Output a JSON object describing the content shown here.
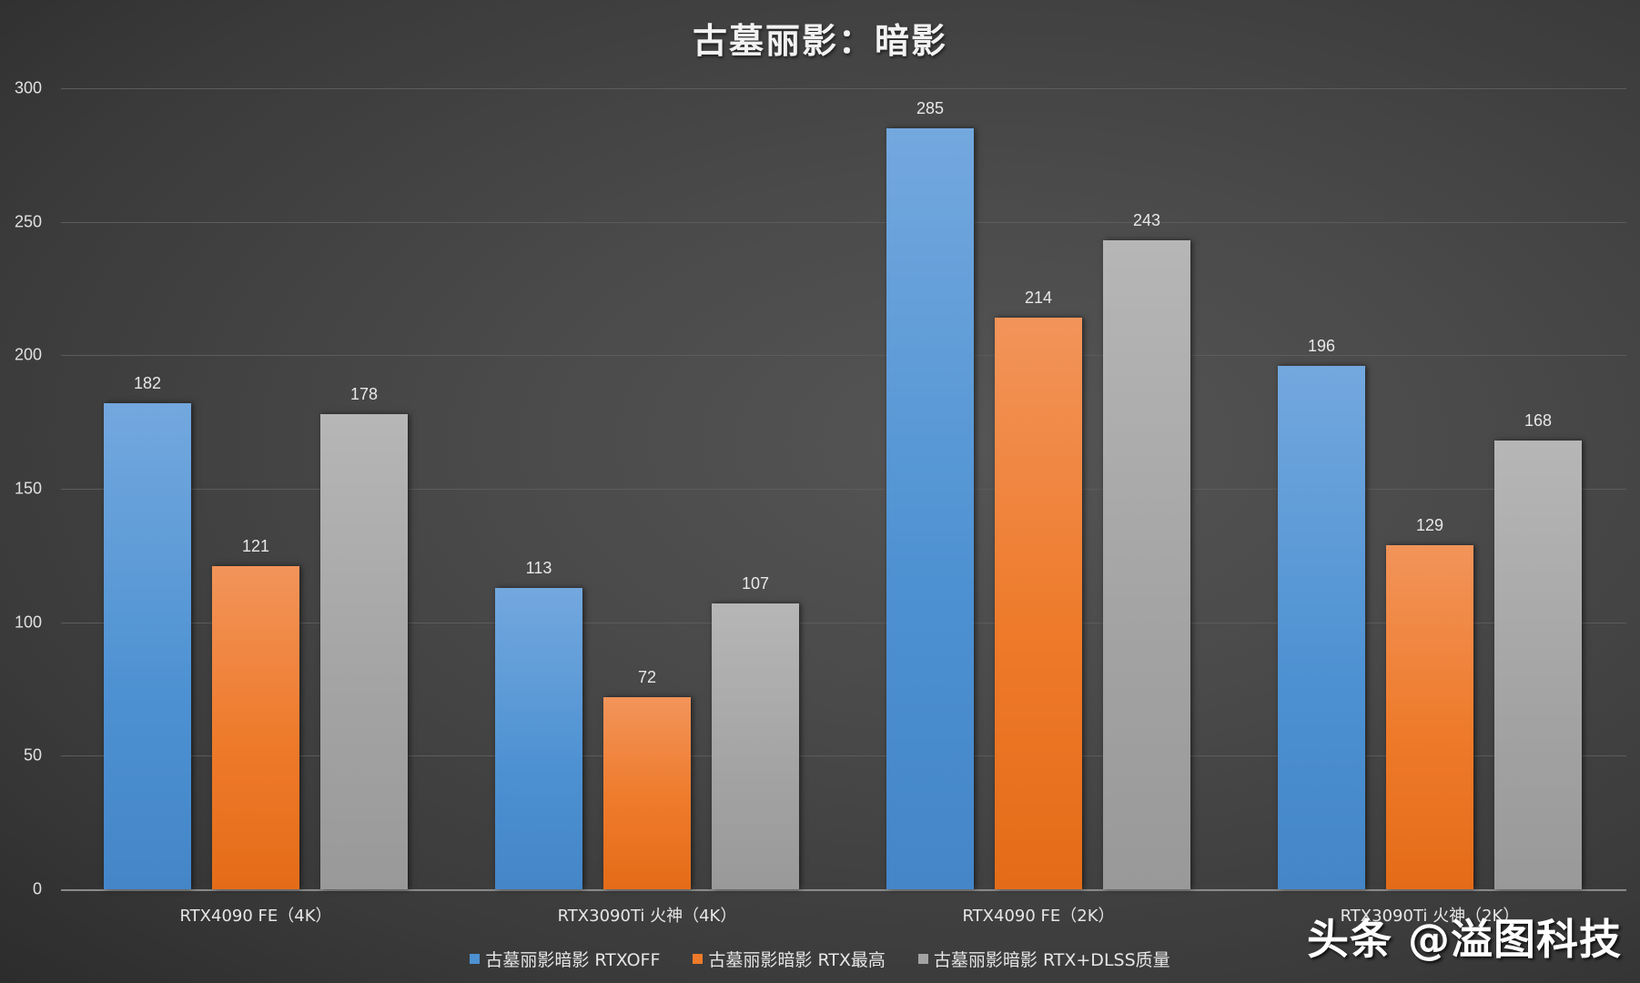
{
  "title": "古墓丽影：暗影",
  "watermark": "头条 @溢图科技",
  "colors": {
    "rtx_off": "#4d91d2",
    "rtx_max": "#ee7a2a",
    "rtx_dlss": "#a3a3a3",
    "background": "#4a4a4a"
  },
  "legend": [
    {
      "label": "古墓丽影暗影 RTXOFF",
      "color": "#4d91d2"
    },
    {
      "label": "古墓丽影暗影 RTX最高",
      "color": "#ee7a2a"
    },
    {
      "label": "古墓丽影暗影 RTX+DLSS质量",
      "color": "#a3a3a3"
    }
  ],
  "chart_data": {
    "type": "bar",
    "title": "古墓丽影：暗影",
    "xlabel": "",
    "ylabel": "",
    "ylim": [
      0,
      300
    ],
    "yticks": [
      0,
      50,
      100,
      150,
      200,
      250,
      300
    ],
    "grid": true,
    "legend_position": "bottom",
    "categories": [
      "RTX4090 FE（4K）",
      "RTX3090Ti 火神（4K）",
      "RTX4090 FE（2K）",
      "RTX3090Ti 火神（2K）"
    ],
    "series": [
      {
        "name": "古墓丽影暗影 RTXOFF",
        "color": "#4d91d2",
        "values": [
          182,
          113,
          285,
          196
        ]
      },
      {
        "name": "古墓丽影暗影 RTX最高",
        "color": "#ee7a2a",
        "values": [
          121,
          72,
          214,
          129
        ]
      },
      {
        "name": "古墓丽影暗影 RTX+DLSS质量",
        "color": "#a3a3a3",
        "values": [
          178,
          107,
          243,
          168
        ]
      }
    ]
  }
}
